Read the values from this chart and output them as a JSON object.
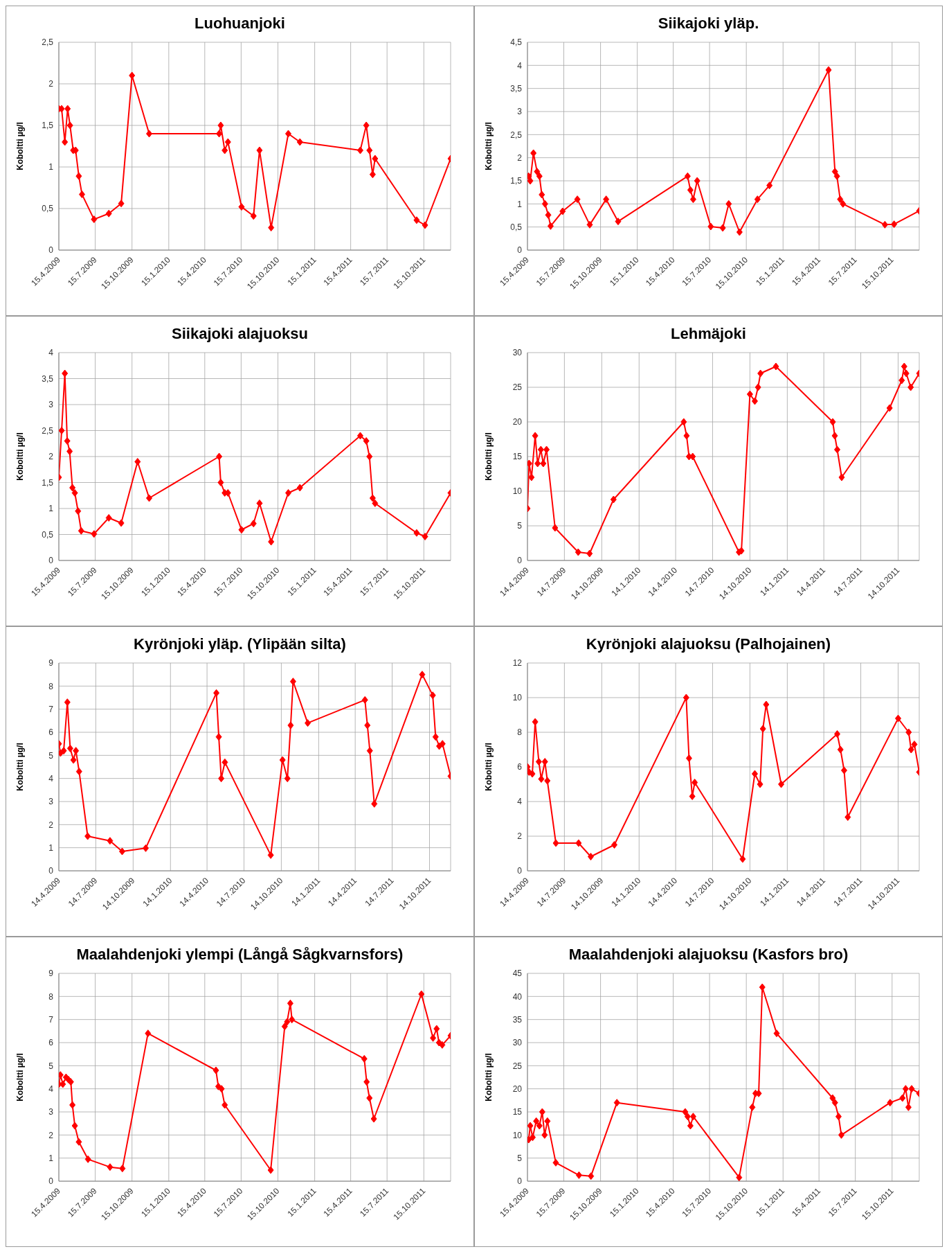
{
  "chart_data": [
    {
      "type": "line",
      "title": "Luohuanjoki",
      "ylabel": "Koboltti µg/l",
      "color": "#ff0000",
      "marker": "diamond",
      "grid": true,
      "x": [
        "2009-04-15",
        "2009-04-22",
        "2009-04-30",
        "2009-05-07",
        "2009-05-13",
        "2009-05-21",
        "2009-05-27",
        "2009-06-04",
        "2009-06-12",
        "2009-07-12",
        "2009-08-18",
        "2009-09-18",
        "2009-10-15",
        "2009-11-27",
        "2010-05-21",
        "2010-05-25",
        "2010-06-04",
        "2010-06-12",
        "2010-07-16",
        "2010-08-15",
        "2010-08-30",
        "2010-09-28",
        "2010-11-10",
        "2010-12-09",
        "2011-05-09",
        "2011-05-24",
        "2011-06-01",
        "2011-06-09",
        "2011-06-15",
        "2011-09-27",
        "2011-10-18",
        "2011-12-21"
      ],
      "values": [
        1.7,
        1.7,
        1.3,
        1.7,
        1.5,
        1.2,
        1.2,
        0.89,
        0.67,
        0.37,
        0.44,
        0.56,
        2.1,
        1.4,
        1.4,
        1.5,
        1.2,
        1.3,
        0.52,
        0.41,
        1.2,
        0.27,
        1.4,
        1.3,
        1.2,
        1.5,
        1.2,
        0.91,
        1.1,
        0.36,
        0.3,
        1.1
      ],
      "xlim": [
        "2009-04-15",
        "2011-12-21"
      ],
      "xticks": [
        {
          "value": "2009-04-15",
          "label": "15.4.2009"
        },
        {
          "value": "2009-07-15",
          "label": "15.7.2009"
        },
        {
          "value": "2009-10-15",
          "label": "15.10.2009"
        },
        {
          "value": "2010-01-15",
          "label": "15.1.2010"
        },
        {
          "value": "2010-04-15",
          "label": "15.4.2010"
        },
        {
          "value": "2010-07-15",
          "label": "15.7.2010"
        },
        {
          "value": "2010-10-15",
          "label": "15.10.2010"
        },
        {
          "value": "2011-01-15",
          "label": "15.1.2011"
        },
        {
          "value": "2011-04-15",
          "label": "15.4.2011"
        },
        {
          "value": "2011-07-15",
          "label": "15.7.2011"
        },
        {
          "value": "2011-10-15",
          "label": "15.10.2011"
        }
      ],
      "ylim": [
        0,
        2.5
      ],
      "yticks": [
        0,
        {
          "value": 0.5,
          "label": "0,5"
        },
        1,
        {
          "value": 1.5,
          "label": "1,5"
        },
        2,
        {
          "value": 2.5,
          "label": "2,5"
        }
      ]
    },
    {
      "type": "line",
      "title": "Siikajoki yläp.",
      "ylabel": "Koboltti µg/l",
      "color": "#ff0000",
      "marker": "diamond",
      "grid": true,
      "x": [
        "2009-04-18",
        "2009-04-22",
        "2009-04-30",
        "2009-05-09",
        "2009-05-15",
        "2009-05-21",
        "2009-05-29",
        "2009-06-06",
        "2009-06-12",
        "2009-07-12",
        "2009-08-18",
        "2009-09-18",
        "2009-10-29",
        "2009-11-28",
        "2010-05-21",
        "2010-05-28",
        "2010-06-04",
        "2010-06-14",
        "2010-07-18",
        "2010-08-17",
        "2010-09-01",
        "2010-09-28",
        "2010-11-12",
        "2010-12-12",
        "2011-05-09",
        "2011-05-25",
        "2011-05-30",
        "2011-06-07",
        "2011-06-14",
        "2011-09-27",
        "2011-10-20",
        "2011-12-22"
      ],
      "values": [
        1.6,
        1.5,
        2.1,
        1.7,
        1.6,
        1.2,
        1.0,
        0.76,
        0.52,
        0.84,
        1.1,
        0.55,
        1.1,
        0.62,
        1.6,
        1.3,
        1.1,
        1.5,
        0.51,
        0.48,
        1.0,
        0.39,
        1.1,
        1.4,
        3.9,
        1.7,
        1.6,
        1.1,
        1.0,
        0.55,
        0.56,
        0.85
      ],
      "xlim": [
        "2009-04-15",
        "2011-12-22"
      ],
      "xticks": [
        {
          "value": "2009-04-15",
          "label": "15.4.2009"
        },
        {
          "value": "2009-07-15",
          "label": "15.7.2009"
        },
        {
          "value": "2009-10-15",
          "label": "15.10.2009"
        },
        {
          "value": "2010-01-15",
          "label": "15.1.2010"
        },
        {
          "value": "2010-04-15",
          "label": "15.4.2010"
        },
        {
          "value": "2010-07-15",
          "label": "15.7.2010"
        },
        {
          "value": "2010-10-15",
          "label": "15.10.2010"
        },
        {
          "value": "2011-01-15",
          "label": "15.1.2011"
        },
        {
          "value": "2011-04-15",
          "label": "15.4.2011"
        },
        {
          "value": "2011-07-15",
          "label": "15.7.2011"
        },
        {
          "value": "2011-10-15",
          "label": "15.10.2011"
        }
      ],
      "ylim": [
        0,
        4.5
      ],
      "yticks": [
        0,
        {
          "value": 0.5,
          "label": "0,5"
        },
        1,
        {
          "value": 1.5,
          "label": "1,5"
        },
        2,
        {
          "value": 2.5,
          "label": "2,5"
        },
        3,
        {
          "value": 3.5,
          "label": "3,5"
        },
        4,
        {
          "value": 4.5,
          "label": "4,5"
        }
      ]
    },
    {
      "type": "line",
      "title": "Siikajoki alajuoksu",
      "ylabel": "Koboltti µg/l",
      "color": "#ff0000",
      "marker": "diamond",
      "grid": true,
      "x": [
        "2009-04-15",
        "2009-04-22",
        "2009-04-30",
        "2009-05-06",
        "2009-05-12",
        "2009-05-19",
        "2009-05-25",
        "2009-06-02",
        "2009-06-10",
        "2009-07-12",
        "2009-08-18",
        "2009-09-18",
        "2009-10-29",
        "2009-11-27",
        "2010-05-21",
        "2010-05-25",
        "2010-06-04",
        "2010-06-12",
        "2010-07-16",
        "2010-08-15",
        "2010-08-30",
        "2010-09-28",
        "2010-11-10",
        "2010-12-09",
        "2011-05-09",
        "2011-05-24",
        "2011-06-01",
        "2011-06-09",
        "2011-06-15",
        "2011-09-27",
        "2011-10-18",
        "2011-12-21"
      ],
      "values": [
        1.6,
        2.5,
        3.6,
        2.3,
        2.1,
        1.4,
        1.3,
        0.95,
        0.57,
        0.51,
        0.82,
        0.72,
        1.9,
        1.2,
        2.0,
        1.5,
        1.3,
        1.3,
        0.59,
        0.71,
        1.1,
        0.36,
        1.3,
        1.4,
        2.4,
        2.3,
        2.0,
        1.2,
        1.1,
        0.53,
        0.46,
        1.3
      ],
      "xlim": [
        "2009-04-15",
        "2011-12-21"
      ],
      "xticks": [
        {
          "value": "2009-04-15",
          "label": "15.4.2009"
        },
        {
          "value": "2009-07-15",
          "label": "15.7.2009"
        },
        {
          "value": "2009-10-15",
          "label": "15.10.2009"
        },
        {
          "value": "2010-01-15",
          "label": "15.1.2010"
        },
        {
          "value": "2010-04-15",
          "label": "15.4.2010"
        },
        {
          "value": "2010-07-15",
          "label": "15.7.2010"
        },
        {
          "value": "2010-10-15",
          "label": "15.10.2010"
        },
        {
          "value": "2011-01-15",
          "label": "15.1.2011"
        },
        {
          "value": "2011-04-15",
          "label": "15.4.2011"
        },
        {
          "value": "2011-07-15",
          "label": "15.7.2011"
        },
        {
          "value": "2011-10-15",
          "label": "15.10.2011"
        }
      ],
      "ylim": [
        0,
        4
      ],
      "yticks": [
        0,
        {
          "value": 0.5,
          "label": "0,5"
        },
        1,
        {
          "value": 1.5,
          "label": "1,5"
        },
        2,
        {
          "value": 2.5,
          "label": "2,5"
        },
        3,
        {
          "value": 3.5,
          "label": "3,5"
        },
        4
      ]
    },
    {
      "type": "line",
      "title": "Lehmäjoki",
      "ylabel": "Koboltti µg/l",
      "color": "#ff0000",
      "marker": "diamond",
      "grid": true,
      "x": [
        "2009-04-14",
        "2009-04-18",
        "2009-04-24",
        "2009-05-03",
        "2009-05-09",
        "2009-05-17",
        "2009-05-23",
        "2009-05-31",
        "2009-06-21",
        "2009-08-17",
        "2009-09-14",
        "2009-11-12",
        "2010-05-04",
        "2010-05-11",
        "2010-05-17",
        "2010-05-26",
        "2010-09-17",
        "2010-09-23",
        "2010-10-14",
        "2010-10-26",
        "2010-11-03",
        "2010-11-09",
        "2010-12-17",
        "2011-05-06",
        "2011-05-11",
        "2011-05-17",
        "2011-05-28",
        "2011-09-23",
        "2011-10-23",
        "2011-10-29",
        "2011-11-03",
        "2011-11-14",
        "2011-12-05"
      ],
      "values": [
        7.5,
        14,
        12,
        18,
        14,
        16,
        14,
        16,
        4.7,
        1.2,
        1.0,
        8.8,
        20,
        18,
        15,
        15,
        1.2,
        1.4,
        24,
        23,
        25,
        27,
        28,
        20,
        18,
        16,
        12,
        22,
        26,
        28,
        27,
        25,
        27
      ],
      "xlim": [
        "2009-04-14",
        "2011-12-05"
      ],
      "xticks": [
        {
          "value": "2009-04-14",
          "label": "14.4.2009"
        },
        {
          "value": "2009-07-14",
          "label": "14.7.2009"
        },
        {
          "value": "2009-10-14",
          "label": "14.10.2009"
        },
        {
          "value": "2010-01-14",
          "label": "14.1.2010"
        },
        {
          "value": "2010-04-14",
          "label": "14.4.2010"
        },
        {
          "value": "2010-07-14",
          "label": "14.7.2010"
        },
        {
          "value": "2010-10-14",
          "label": "14.10.2010"
        },
        {
          "value": "2011-01-14",
          "label": "14.1.2011"
        },
        {
          "value": "2011-04-14",
          "label": "14.4.2011"
        },
        {
          "value": "2011-07-14",
          "label": "14.7.2011"
        },
        {
          "value": "2011-10-14",
          "label": "14.10.2011"
        }
      ],
      "ylim": [
        0,
        30
      ],
      "yticks": [
        0,
        5,
        10,
        15,
        20,
        25,
        30
      ]
    },
    {
      "type": "line",
      "title": "Kyrönjoki yläp. (Ylipään silta)",
      "ylabel": "Koboltti µg/l",
      "color": "#ff0000",
      "marker": "diamond",
      "grid": true,
      "x": [
        "2009-04-14",
        "2009-04-18",
        "2009-04-26",
        "2009-05-05",
        "2009-05-12",
        "2009-05-20",
        "2009-05-26",
        "2009-06-03",
        "2009-06-24",
        "2009-08-18",
        "2009-09-17",
        "2009-11-14",
        "2010-05-07",
        "2010-05-13",
        "2010-05-19",
        "2010-05-28",
        "2010-09-18",
        "2010-10-17",
        "2010-10-29",
        "2010-11-06",
        "2010-11-12",
        "2010-12-18",
        "2011-05-08",
        "2011-05-14",
        "2011-05-20",
        "2011-05-31",
        "2011-09-26",
        "2011-10-22",
        "2011-10-29",
        "2011-11-07",
        "2011-11-15",
        "2011-12-05"
      ],
      "values": [
        5.5,
        5.1,
        5.2,
        7.3,
        5.3,
        4.8,
        5.2,
        4.3,
        1.5,
        1.3,
        0.84,
        0.98,
        7.7,
        5.8,
        4.0,
        4.7,
        0.68,
        4.8,
        4.0,
        6.3,
        8.2,
        6.4,
        7.4,
        6.3,
        5.2,
        2.9,
        8.5,
        7.6,
        5.8,
        5.4,
        5.5,
        4.1
      ],
      "xlim": [
        "2009-04-14",
        "2011-12-05"
      ],
      "xticks": [
        {
          "value": "2009-04-14",
          "label": "14.4.2009"
        },
        {
          "value": "2009-07-14",
          "label": "14.7.2009"
        },
        {
          "value": "2009-10-14",
          "label": "14.10.2009"
        },
        {
          "value": "2010-01-14",
          "label": "14.1.2010"
        },
        {
          "value": "2010-04-14",
          "label": "14.4.2010"
        },
        {
          "value": "2010-07-14",
          "label": "14.7.2010"
        },
        {
          "value": "2010-10-14",
          "label": "14.10.2010"
        },
        {
          "value": "2011-01-14",
          "label": "14.1.2011"
        },
        {
          "value": "2011-04-14",
          "label": "14.4.2011"
        },
        {
          "value": "2011-07-14",
          "label": "14.7.2011"
        },
        {
          "value": "2011-10-14",
          "label": "14.10.2011"
        }
      ],
      "ylim": [
        0,
        9
      ],
      "yticks": [
        0,
        1,
        2,
        3,
        4,
        5,
        6,
        7,
        8,
        9
      ]
    },
    {
      "type": "line",
      "title": "Kyrönjoki alajuoksu (Palhojainen)",
      "ylabel": "Koboltti µg/l",
      "color": "#ff0000",
      "marker": "diamond",
      "grid": true,
      "x": [
        "2009-04-14",
        "2009-04-18",
        "2009-04-26",
        "2009-05-03",
        "2009-05-12",
        "2009-05-18",
        "2009-05-27",
        "2009-06-02",
        "2009-06-23",
        "2009-08-18",
        "2009-09-17",
        "2009-11-14",
        "2010-05-10",
        "2010-05-17",
        "2010-05-25",
        "2010-05-31",
        "2010-09-26",
        "2010-10-26",
        "2010-11-08",
        "2010-11-15",
        "2010-11-23",
        "2010-12-30",
        "2011-05-17",
        "2011-05-25",
        "2011-06-03",
        "2011-06-12",
        "2011-10-14",
        "2011-11-09",
        "2011-11-15",
        "2011-11-23",
        "2011-12-05"
      ],
      "values": [
        6.0,
        5.7,
        5.6,
        8.6,
        6.3,
        5.3,
        6.3,
        5.2,
        1.6,
        1.6,
        0.82,
        1.5,
        10,
        6.5,
        4.3,
        5.1,
        0.68,
        5.6,
        5.0,
        8.2,
        9.6,
        5.0,
        7.9,
        7.0,
        5.8,
        3.1,
        8.8,
        8.0,
        7.0,
        7.3,
        5.7
      ],
      "xlim": [
        "2009-04-14",
        "2011-12-05"
      ],
      "xticks": [
        {
          "value": "2009-04-14",
          "label": "14.4.2009"
        },
        {
          "value": "2009-07-14",
          "label": "14.7.2009"
        },
        {
          "value": "2009-10-14",
          "label": "14.10.2009"
        },
        {
          "value": "2010-01-14",
          "label": "14.1.2010"
        },
        {
          "value": "2010-04-14",
          "label": "14.4.2010"
        },
        {
          "value": "2010-07-14",
          "label": "14.7.2010"
        },
        {
          "value": "2010-10-14",
          "label": "14.10.2010"
        },
        {
          "value": "2011-01-14",
          "label": "14.1.2011"
        },
        {
          "value": "2011-04-14",
          "label": "14.4.2011"
        },
        {
          "value": "2011-07-14",
          "label": "14.7.2011"
        },
        {
          "value": "2011-10-14",
          "label": "14.10.2011"
        }
      ],
      "ylim": [
        0,
        12
      ],
      "yticks": [
        0,
        2,
        4,
        6,
        8,
        10,
        12
      ]
    },
    {
      "type": "line",
      "title": "Maalahdenjoki ylempi (Långå Sågkvarnsfors)",
      "ylabel": "Koboltti µg/l",
      "color": "#ff0000",
      "marker": "diamond",
      "grid": true,
      "x": [
        "2009-04-15",
        "2009-04-19",
        "2009-04-25",
        "2009-05-03",
        "2009-05-09",
        "2009-05-15",
        "2009-05-19",
        "2009-05-25",
        "2009-06-04",
        "2009-06-27",
        "2009-08-21",
        "2009-09-21",
        "2009-11-24",
        "2010-05-13",
        "2010-05-19",
        "2010-05-27",
        "2010-06-04",
        "2010-09-27",
        "2010-11-01",
        "2010-11-07",
        "2010-11-15",
        "2010-11-19",
        "2011-05-19",
        "2011-05-25",
        "2011-06-01",
        "2011-06-12",
        "2011-10-09",
        "2011-11-07",
        "2011-11-16",
        "2011-11-22",
        "2011-11-30",
        "2011-12-21"
      ],
      "values": [
        4.2,
        4.6,
        4.2,
        4.5,
        4.4,
        4.3,
        3.3,
        2.4,
        1.7,
        0.95,
        0.61,
        0.55,
        6.4,
        4.8,
        4.1,
        4.0,
        3.3,
        0.48,
        6.7,
        6.9,
        7.7,
        7.0,
        5.3,
        4.3,
        3.6,
        2.7,
        8.1,
        6.2,
        6.6,
        6.0,
        5.9,
        6.3
      ],
      "xlim": [
        "2009-04-15",
        "2011-12-21"
      ],
      "xticks": [
        {
          "value": "2009-04-15",
          "label": "15.4.2009"
        },
        {
          "value": "2009-07-15",
          "label": "15.7.2009"
        },
        {
          "value": "2009-10-15",
          "label": "15.10.2009"
        },
        {
          "value": "2010-01-15",
          "label": "15.1.2010"
        },
        {
          "value": "2010-04-15",
          "label": "15.4.2010"
        },
        {
          "value": "2010-07-15",
          "label": "15.7.2010"
        },
        {
          "value": "2010-10-15",
          "label": "15.10.2010"
        },
        {
          "value": "2011-01-15",
          "label": "15.1.2011"
        },
        {
          "value": "2011-04-15",
          "label": "15.4.2011"
        },
        {
          "value": "2011-07-15",
          "label": "15.7.2011"
        },
        {
          "value": "2011-10-15",
          "label": "15.10.2011"
        }
      ],
      "ylim": [
        0,
        9
      ],
      "yticks": [
        0,
        1,
        2,
        3,
        4,
        5,
        6,
        7,
        8,
        9
      ]
    },
    {
      "type": "line",
      "title": "Maalahdenjoki alajuoksu (Kasfors bro)",
      "ylabel": "Koboltti µg/l",
      "color": "#ff0000",
      "marker": "diamond",
      "grid": true,
      "x": [
        "2009-04-18",
        "2009-04-22",
        "2009-04-28",
        "2009-05-07",
        "2009-05-15",
        "2009-05-22",
        "2009-05-28",
        "2009-06-04",
        "2009-06-25",
        "2009-08-22",
        "2009-09-21",
        "2009-11-25",
        "2010-05-15",
        "2010-05-21",
        "2010-05-28",
        "2010-06-04",
        "2010-09-27",
        "2010-10-30",
        "2010-11-07",
        "2010-11-15",
        "2010-11-24",
        "2010-12-30",
        "2011-05-19",
        "2011-05-25",
        "2011-06-03",
        "2011-06-10",
        "2011-10-10",
        "2011-11-10",
        "2011-11-18",
        "2011-11-25",
        "2011-12-03",
        "2011-12-22"
      ],
      "values": [
        9.0,
        12,
        9.5,
        13,
        12,
        15,
        10,
        13,
        4.0,
        1.3,
        1.1,
        17,
        15,
        14,
        12,
        14,
        0.8,
        16,
        19,
        19,
        42,
        32,
        18,
        17,
        14,
        10,
        17,
        18,
        20,
        16,
        20,
        19
      ],
      "xlim": [
        "2009-04-15",
        "2011-12-22"
      ],
      "xticks": [
        {
          "value": "2009-04-15",
          "label": "15.4.2009"
        },
        {
          "value": "2009-07-15",
          "label": "15.7.2009"
        },
        {
          "value": "2009-10-15",
          "label": "15.10.2009"
        },
        {
          "value": "2010-01-15",
          "label": "15.1.2010"
        },
        {
          "value": "2010-04-15",
          "label": "15.4.2010"
        },
        {
          "value": "2010-07-15",
          "label": "15.7.2010"
        },
        {
          "value": "2010-10-15",
          "label": "15.10.2010"
        },
        {
          "value": "2011-01-15",
          "label": "15.1.2011"
        },
        {
          "value": "2011-04-15",
          "label": "15.4.2011"
        },
        {
          "value": "2011-07-15",
          "label": "15.7.2011"
        },
        {
          "value": "2011-10-15",
          "label": "15.10.2011"
        }
      ],
      "ylim": [
        0,
        45
      ],
      "yticks": [
        0,
        5,
        10,
        15,
        20,
        25,
        30,
        35,
        40,
        45
      ]
    }
  ]
}
